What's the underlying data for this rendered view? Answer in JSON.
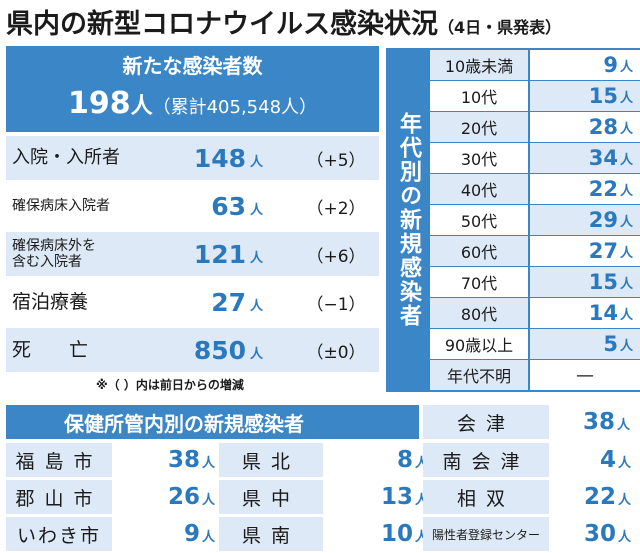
{
  "title": {
    "main": "県内の新型コロナウイルス感染状況",
    "sub": "（4日・県発表）"
  },
  "new_cases": {
    "label": "新たな感染者数",
    "count": "198",
    "unit": "人",
    "cumulative": "（累計405,548人）"
  },
  "status_rows": [
    {
      "label": "入院・入所者",
      "value": "148",
      "unit": "人",
      "delta": "（+5）"
    },
    {
      "label": "確保病床入院者",
      "value": "63",
      "unit": "人",
      "delta": "（+2）"
    },
    {
      "label": "確保病床外を\n含む入院者",
      "value": "121",
      "unit": "人",
      "delta": "（+6）"
    },
    {
      "label": "宿泊療養",
      "value": "27",
      "unit": "人",
      "delta": "（−1）"
    },
    {
      "label": "死　　亡",
      "value": "850",
      "unit": "人",
      "delta": "（±0）"
    }
  ],
  "footnote": "※（ ）内は前日からの増減",
  "age_section": {
    "heading": "年代別の新規感染者",
    "rows": [
      {
        "label": "10歳未満",
        "value": "9",
        "unit": "人"
      },
      {
        "label": "10代",
        "value": "15",
        "unit": "人"
      },
      {
        "label": "20代",
        "value": "28",
        "unit": "人"
      },
      {
        "label": "30代",
        "value": "34",
        "unit": "人"
      },
      {
        "label": "40代",
        "value": "22",
        "unit": "人"
      },
      {
        "label": "50代",
        "value": "29",
        "unit": "人"
      },
      {
        "label": "60代",
        "value": "27",
        "unit": "人"
      },
      {
        "label": "70代",
        "value": "15",
        "unit": "人"
      },
      {
        "label": "80代",
        "value": "14",
        "unit": "人"
      },
      {
        "label": "90歳以上",
        "value": "5",
        "unit": "人"
      },
      {
        "label": "年代不明",
        "value": "—",
        "unit": ""
      }
    ]
  },
  "health_centers": {
    "heading": "保健所管内別の新規感染者",
    "top_right": {
      "label": "会津",
      "value": "38",
      "unit": "人"
    },
    "rows": [
      [
        {
          "label": "福島市",
          "value": "38",
          "unit": "人"
        },
        {
          "label": "県北",
          "value": "8",
          "unit": "人"
        },
        {
          "label": "南会津",
          "value": "4",
          "unit": "人"
        }
      ],
      [
        {
          "label": "郡山市",
          "value": "26",
          "unit": "人"
        },
        {
          "label": "県中",
          "value": "13",
          "unit": "人"
        },
        {
          "label": "相双",
          "value": "22",
          "unit": "人"
        }
      ],
      [
        {
          "label": "いわき市",
          "value": "9",
          "unit": "人"
        },
        {
          "label": "県南",
          "value": "10",
          "unit": "人"
        },
        {
          "label": "陽性者登録センター",
          "value": "30",
          "unit": "人"
        }
      ]
    ]
  },
  "colors": {
    "panel_blue": "#3a86c6",
    "light_blue": "#dde9f6",
    "number_blue": "#2a78be"
  }
}
